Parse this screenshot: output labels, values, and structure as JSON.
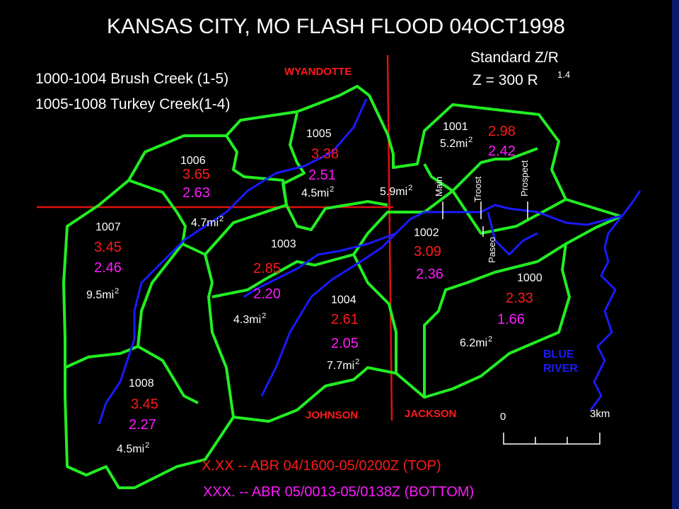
{
  "title": "KANSAS CITY, MO  FLASH FLOOD 04OCT1998",
  "legend": [
    "1000-1004 Brush Creek (1-5)",
    "1005-1008 Turkey Creek(1-4)"
  ],
  "zr": {
    "label": "Standard Z/R",
    "formula": "Z = 300 R",
    "exponent": "1.4"
  },
  "counties": [
    "WYANDOTTE",
    "JOHNSON",
    "JACKSON"
  ],
  "streets": [
    "Main",
    "Troost",
    "Paseo",
    "Prospect"
  ],
  "river": [
    "BLUE",
    "RIVER"
  ],
  "scale": [
    "0",
    "3km"
  ],
  "area_superscript": "2",
  "basins": [
    {
      "id": "1000",
      "top": "2.33",
      "bottom": "1.66",
      "area": "6.2mi"
    },
    {
      "id": "1001",
      "top": "2.98",
      "bottom": "2.42",
      "area": "5.2mi"
    },
    {
      "id": "1002",
      "top": "3.09",
      "bottom": "2.36",
      "area": "5.9mi"
    },
    {
      "id": "1003",
      "top": "2.85",
      "bottom": "2.20",
      "area": "4.3mi"
    },
    {
      "id": "1004",
      "top": "2.61",
      "bottom": "2.05",
      "area": "7.7mi"
    },
    {
      "id": "1005",
      "top": "3.38",
      "bottom": "2.51",
      "area": "4.5mi"
    },
    {
      "id": "1006",
      "top": "3.65",
      "bottom": "2.63",
      "area": "4.7mi"
    },
    {
      "id": "1007",
      "top": "3.45",
      "bottom": "2.46",
      "area": "9.5mi"
    },
    {
      "id": "1008",
      "top": "3.45",
      "bottom": "2.27",
      "area": "4.5mi"
    }
  ],
  "footer": [
    "X.XX -- ABR  04/1600-05/0200Z  (TOP)",
    "XXX. -- ABR 05/0013-05/0138Z  (BOTTOM)"
  ]
}
